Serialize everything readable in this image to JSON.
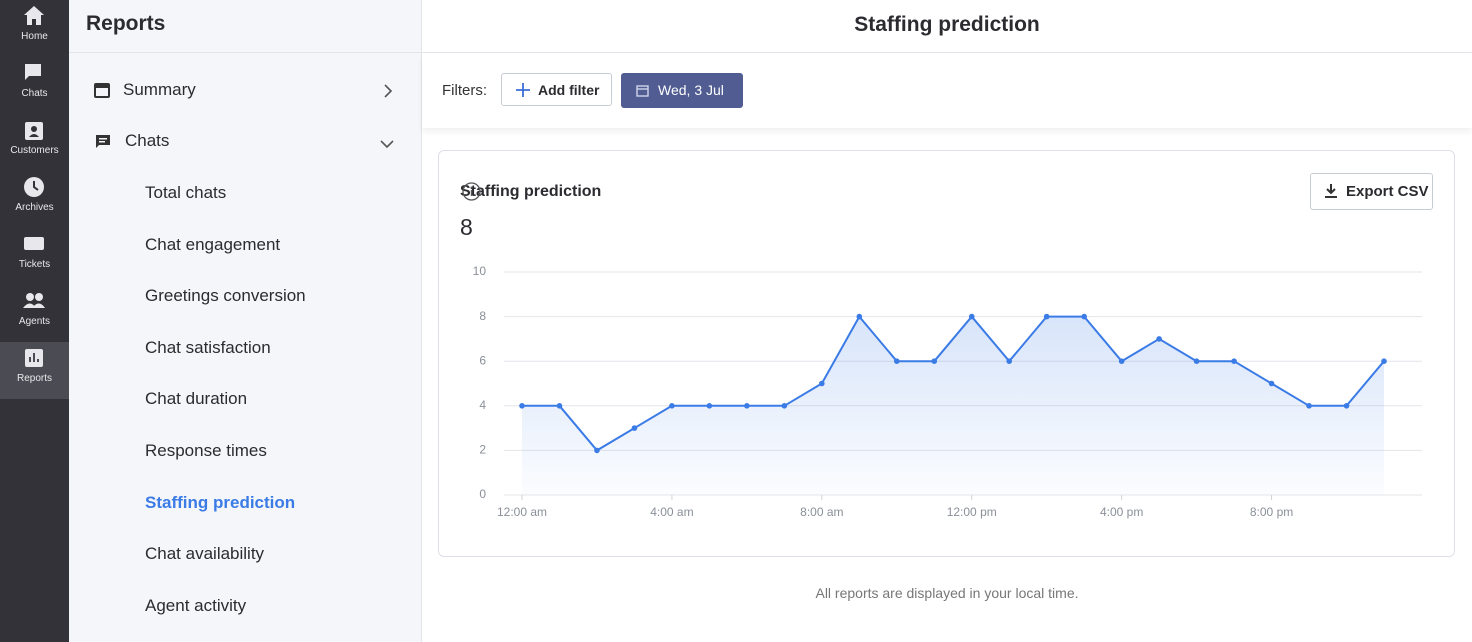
{
  "nav": [
    "Home",
    "Chats",
    "Customers",
    "Archives",
    "Tickets",
    "Agents",
    "Reports"
  ],
  "sidebar": {
    "title": "Reports",
    "items": [
      "Summary",
      "Chats"
    ],
    "sub_items": [
      "Total chats",
      "Chat engagement",
      "Greetings conversion",
      "Chat satisfaction",
      "Chat duration",
      "Response times",
      "Staffing prediction",
      "Chat availability",
      "Agent activity"
    ]
  },
  "header": {
    "title": "Staffing prediction"
  },
  "filters": {
    "label": "Filters:",
    "add_filter": "Add filter",
    "date": "Wed, 3 Jul"
  },
  "card": {
    "title": "Staffing prediction",
    "value": 8,
    "export": "Export CSV"
  },
  "chart_data": {
    "type": "line",
    "categories": [
      "12:00 am",
      null,
      null,
      null,
      "4:00 am",
      null,
      null,
      null,
      "8:00 am",
      null,
      null,
      null,
      "12:00 pm",
      null,
      null,
      null,
      "4:00 pm",
      null,
      null,
      null,
      "8:00 pm",
      null,
      null,
      null
    ],
    "values": [
      4,
      4,
      2,
      3,
      4,
      4,
      4,
      4,
      5,
      8,
      6,
      6,
      8,
      6,
      8,
      8,
      6,
      7,
      6,
      6,
      5,
      4,
      4,
      6
    ],
    "color": "#3b7be6",
    "ylim": [
      0,
      10
    ],
    "yticks": [
      0,
      2,
      4,
      6,
      8,
      10
    ],
    "grid": true
  },
  "footer_note": "All reports are displayed in your local time."
}
